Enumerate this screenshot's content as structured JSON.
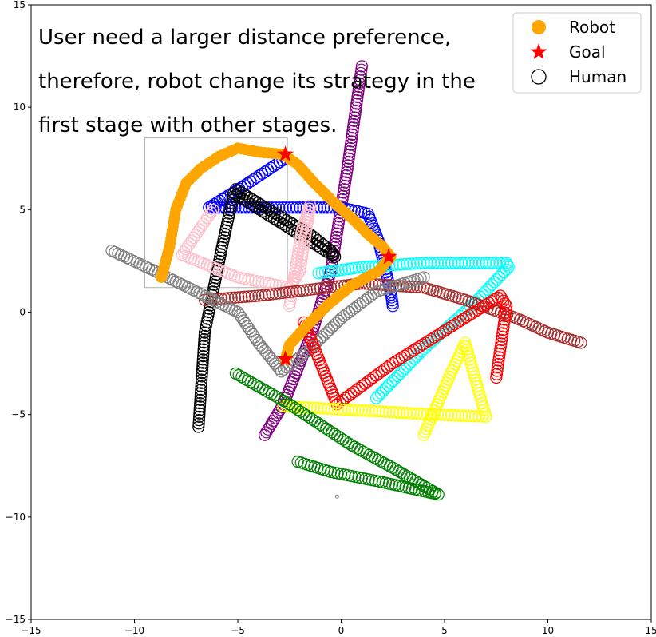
{
  "chart_data": {
    "type": "scatter",
    "xlim": [
      -15,
      15
    ],
    "ylim": [
      -15,
      15
    ],
    "x_ticks": [
      -15,
      -10,
      -5,
      0,
      5,
      10,
      15
    ],
    "y_ticks": [
      -15,
      -10,
      -5,
      0,
      5,
      10,
      15
    ],
    "x_tick_labels": [
      "−15",
      "−10",
      "−5",
      "0",
      "5",
      "10",
      "15"
    ],
    "y_tick_labels": [
      "−15",
      "−10",
      "−5",
      "0",
      "5",
      "10",
      "15"
    ],
    "grid": false,
    "annotation": [
      "User need a larger distance preference,",
      "therefore, robot change its strategy in the",
      "first stage with other stages."
    ],
    "legend": {
      "placement": "top-right",
      "entries": [
        {
          "label": "Robot",
          "marker": "filled-circle",
          "color": "#ffa500"
        },
        {
          "label": "Goal",
          "marker": "star",
          "color": "#ff0000"
        },
        {
          "label": "Human",
          "marker": "open-circle",
          "color": "#000000"
        }
      ]
    },
    "highlight_box": {
      "x0": -9.5,
      "x1": -2.6,
      "y0": 1.2,
      "y1": 8.5,
      "color": "#b0b0b0"
    },
    "robot": {
      "color": "#ffa500",
      "path": [
        [
          -8.7,
          1.7
        ],
        [
          -8.3,
          3.2
        ],
        [
          -8.0,
          5.0
        ],
        [
          -7.5,
          6.3
        ],
        [
          -6.8,
          7.0
        ],
        [
          -5.9,
          7.6
        ],
        [
          -5.0,
          8.0
        ],
        [
          -3.9,
          7.8
        ],
        [
          -2.8,
          7.7
        ],
        [
          -2.1,
          7.2
        ],
        [
          -1.3,
          6.3
        ],
        [
          -0.4,
          5.4
        ],
        [
          0.5,
          4.6
        ],
        [
          1.3,
          3.8
        ],
        [
          2.0,
          3.2
        ],
        [
          2.4,
          2.7
        ],
        [
          1.8,
          2.0
        ],
        [
          0.5,
          1.3
        ],
        [
          -0.6,
          0.4
        ],
        [
          -1.6,
          -0.6
        ],
        [
          -2.5,
          -1.6
        ],
        [
          -2.7,
          -2.3
        ]
      ]
    },
    "goals": {
      "color": "#ff0000",
      "points": [
        [
          -2.7,
          7.7
        ],
        [
          2.3,
          2.7
        ],
        [
          -2.7,
          -2.3
        ]
      ]
    },
    "humans": [
      {
        "color": "#800080",
        "path": [
          [
            1.0,
            12.0
          ],
          [
            0.3,
            7.0
          ],
          [
            -0.5,
            2.0
          ],
          [
            -1.4,
            -1.0
          ],
          [
            -2.8,
            -4.5
          ],
          [
            -3.7,
            -6.0
          ]
        ]
      },
      {
        "color": "#0000ff",
        "path": [
          [
            -2.7,
            7.5
          ],
          [
            -4.8,
            6.1
          ],
          [
            -6.4,
            5.1
          ],
          [
            -4.0,
            5.1
          ],
          [
            0.0,
            5.1
          ],
          [
            1.3,
            4.8
          ],
          [
            1.8,
            3.5
          ],
          [
            2.4,
            1.0
          ],
          [
            2.5,
            0.3
          ]
        ]
      },
      {
        "color": "#000000",
        "path": [
          [
            -5.1,
            6.0
          ],
          [
            -3.5,
            5.0
          ],
          [
            -1.5,
            3.8
          ],
          [
            -0.5,
            3.0
          ],
          [
            -0.3,
            2.7
          ],
          [
            -5.2,
            5.8
          ],
          [
            -5.8,
            3.0
          ],
          [
            -6.6,
            -1.0
          ],
          [
            -6.9,
            -5.6
          ]
        ]
      },
      {
        "color": "#ffc0cb",
        "path": [
          [
            -6.2,
            5.0
          ],
          [
            -7.7,
            2.8
          ],
          [
            -5.0,
            1.7
          ],
          [
            -2.5,
            1.2
          ],
          [
            -2.0,
            2.0
          ],
          [
            -1.5,
            5.2
          ],
          [
            -1.9,
            4.0
          ],
          [
            -2.5,
            0.3
          ]
        ]
      },
      {
        "color": "#00ffff",
        "path": [
          [
            -1.1,
            1.9
          ],
          [
            1.0,
            2.2
          ],
          [
            4.0,
            2.4
          ],
          [
            8.0,
            2.4
          ],
          [
            8.1,
            2.2
          ],
          [
            6.5,
            0.5
          ],
          [
            4.0,
            -1.8
          ],
          [
            1.7,
            -4.2
          ]
        ]
      },
      {
        "color": "#a52a2a",
        "path": [
          [
            -6.6,
            0.6
          ],
          [
            -4.0,
            0.8
          ],
          [
            -1.5,
            1.1
          ],
          [
            1.0,
            1.4
          ],
          [
            4.0,
            1.2
          ],
          [
            6.0,
            0.6
          ],
          [
            8.5,
            -0.3
          ],
          [
            10.0,
            -1.0
          ],
          [
            11.6,
            -1.5
          ]
        ]
      },
      {
        "color": "#808080",
        "path": [
          [
            -11.1,
            3.0
          ],
          [
            -9.0,
            2.0
          ],
          [
            -7.0,
            1.0
          ],
          [
            -5.0,
            0.0
          ],
          [
            -4.0,
            -1.5
          ],
          [
            -2.9,
            -2.9
          ],
          [
            -1.5,
            -1.8
          ],
          [
            0.0,
            -0.3
          ],
          [
            1.7,
            1.0
          ],
          [
            4.0,
            1.7
          ]
        ]
      },
      {
        "color": "#ff0000",
        "path": [
          [
            -1.8,
            -0.5
          ],
          [
            -0.2,
            -4.5
          ],
          [
            2.5,
            -2.5
          ],
          [
            5.5,
            -0.6
          ],
          [
            7.7,
            0.8
          ],
          [
            8.0,
            0.3
          ],
          [
            7.5,
            -3.2
          ]
        ]
      },
      {
        "color": "#ffff00",
        "path": [
          [
            -2.8,
            -4.6
          ],
          [
            1.0,
            -4.8
          ],
          [
            4.5,
            -5.0
          ],
          [
            7.0,
            -5.1
          ],
          [
            6.0,
            -1.5
          ],
          [
            5.3,
            -3.0
          ],
          [
            4.0,
            -6.0
          ]
        ]
      },
      {
        "color": "#008000",
        "path": [
          [
            -5.1,
            -3.0
          ],
          [
            -2.5,
            -4.5
          ],
          [
            0.5,
            -6.5
          ],
          [
            2.5,
            -7.6
          ],
          [
            4.7,
            -8.9
          ],
          [
            2.0,
            -8.3
          ],
          [
            -0.5,
            -7.8
          ],
          [
            -2.1,
            -7.3
          ]
        ]
      }
    ],
    "stray_marker": {
      "x": -0.2,
      "y": -9.0,
      "color": "#808080"
    }
  }
}
